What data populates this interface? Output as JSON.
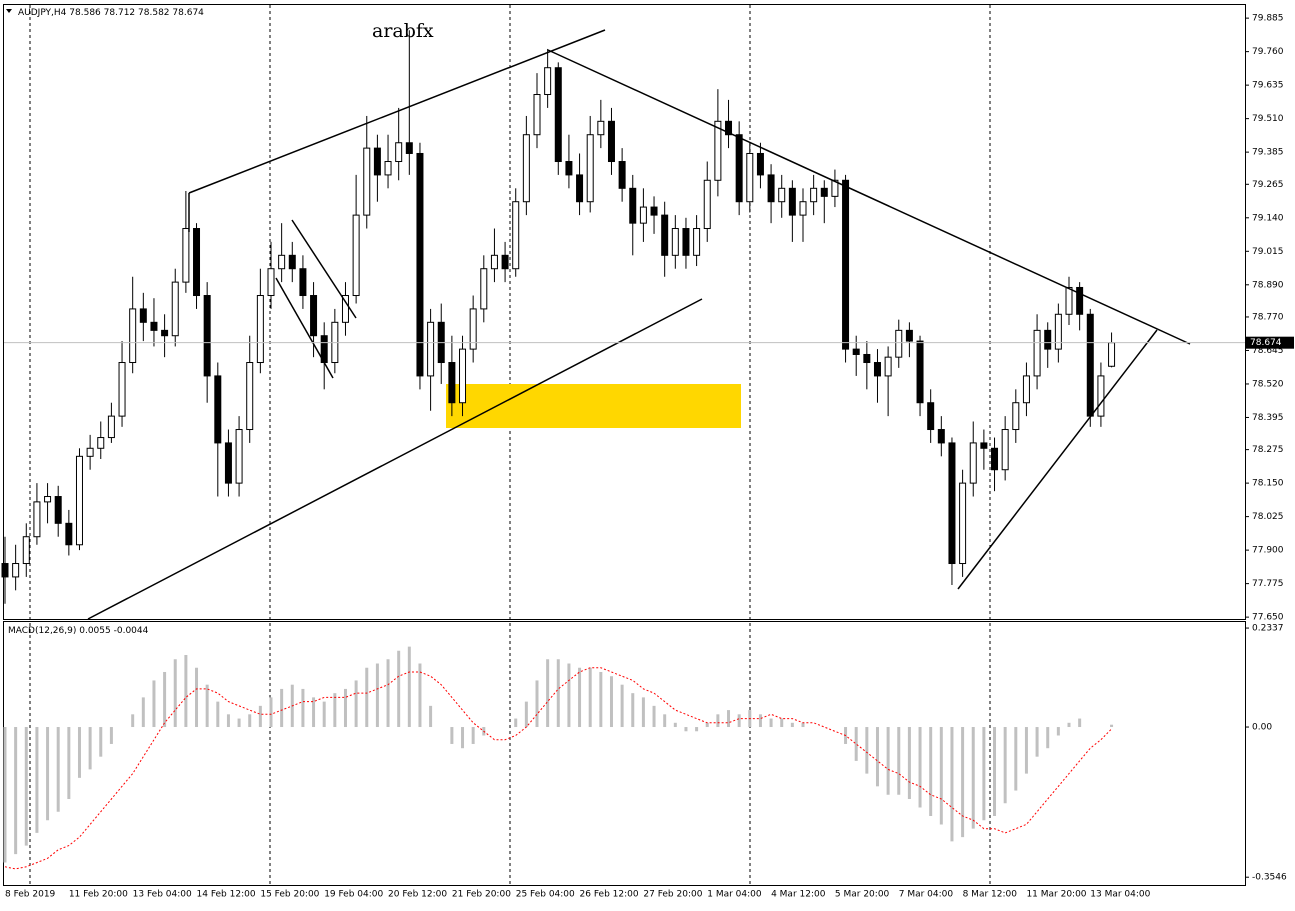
{
  "chart_data": {
    "type": "candlestick",
    "symbol": "AUDJPY,H4",
    "annotation": "arabfx",
    "categories": [
      "8 Feb 2019",
      null,
      null,
      null,
      null,
      null,
      "11 Feb 20:00",
      null,
      null,
      null,
      null,
      null,
      "13 Feb 04:00",
      null,
      null,
      null,
      null,
      null,
      "14 Feb 12:00",
      null,
      null,
      null,
      null,
      null,
      "15 Feb 20:00",
      null,
      null,
      null,
      null,
      null,
      "19 Feb 04:00",
      null,
      null,
      null,
      null,
      null,
      "20 Feb 12:00",
      null,
      null,
      null,
      null,
      null,
      "21 Feb 20:00",
      null,
      null,
      null,
      null,
      null,
      "25 Feb 04:00",
      null,
      null,
      null,
      null,
      null,
      "26 Feb 12:00",
      null,
      null,
      null,
      null,
      null,
      "27 Feb 20:00",
      null,
      null,
      null,
      null,
      null,
      "1 Mar 04:00",
      null,
      null,
      null,
      null,
      null,
      "4 Mar 12:00",
      null,
      null,
      null,
      null,
      null,
      "5 Mar 20:00",
      null,
      null,
      null,
      null,
      null,
      "7 Mar 04:00",
      null,
      null,
      null,
      null,
      null,
      "8 Mar 12:00",
      null,
      null,
      null,
      null,
      null,
      "11 Mar 20:00",
      null,
      null,
      null,
      null,
      null,
      "13 Mar 04:00",
      null,
      null
    ],
    "series": [
      {
        "name": "AUDJPY,H4",
        "color": "#000000",
        "values": [
          [
            77.85,
            77.95,
            77.7,
            77.8
          ],
          [
            77.8,
            77.92,
            77.75,
            77.85
          ],
          [
            77.85,
            78.0,
            77.8,
            77.95
          ],
          [
            77.95,
            78.15,
            77.92,
            78.08
          ],
          [
            78.08,
            78.15,
            78.0,
            78.1
          ],
          [
            78.1,
            78.14,
            77.95,
            78.0
          ],
          [
            78.0,
            78.05,
            77.88,
            77.92
          ],
          [
            77.92,
            78.28,
            77.9,
            78.25
          ],
          [
            78.25,
            78.33,
            78.2,
            78.28
          ],
          [
            78.28,
            78.38,
            78.24,
            78.32
          ],
          [
            78.32,
            78.45,
            78.3,
            78.4
          ],
          [
            78.4,
            78.68,
            78.36,
            78.6
          ],
          [
            78.6,
            78.92,
            78.56,
            78.8
          ],
          [
            78.8,
            78.86,
            78.68,
            78.75
          ],
          [
            78.75,
            78.84,
            78.66,
            78.72
          ],
          [
            78.72,
            78.78,
            78.62,
            78.7
          ],
          [
            78.7,
            78.95,
            78.66,
            78.9
          ],
          [
            78.9,
            79.24,
            78.86,
            79.1
          ],
          [
            79.1,
            79.12,
            78.8,
            78.85
          ],
          [
            78.85,
            78.9,
            78.45,
            78.55
          ],
          [
            78.55,
            78.6,
            78.1,
            78.3
          ],
          [
            78.3,
            78.35,
            78.1,
            78.15
          ],
          [
            78.15,
            78.4,
            78.1,
            78.35
          ],
          [
            78.35,
            78.7,
            78.3,
            78.6
          ],
          [
            78.6,
            78.95,
            78.56,
            78.85
          ],
          [
            78.85,
            79.05,
            78.8,
            78.95
          ],
          [
            78.95,
            79.12,
            78.9,
            79.0
          ],
          [
            79.0,
            79.05,
            78.9,
            78.95
          ],
          [
            78.95,
            79.0,
            78.8,
            78.85
          ],
          [
            78.85,
            78.9,
            78.62,
            78.7
          ],
          [
            78.7,
            78.75,
            78.5,
            78.6
          ],
          [
            78.6,
            78.8,
            78.56,
            78.75
          ],
          [
            78.75,
            78.9,
            78.7,
            78.85
          ],
          [
            78.85,
            79.3,
            78.82,
            79.15
          ],
          [
            79.15,
            79.52,
            79.1,
            79.4
          ],
          [
            79.4,
            79.45,
            79.2,
            79.3
          ],
          [
            79.3,
            79.45,
            79.25,
            79.35
          ],
          [
            79.35,
            79.55,
            79.28,
            79.42
          ],
          [
            79.42,
            79.84,
            79.3,
            79.38
          ],
          [
            79.38,
            79.42,
            78.5,
            78.55
          ],
          [
            78.55,
            78.8,
            78.42,
            78.75
          ],
          [
            78.75,
            78.82,
            78.52,
            78.6
          ],
          [
            78.6,
            78.7,
            78.4,
            78.45
          ],
          [
            78.45,
            78.7,
            78.4,
            78.65
          ],
          [
            78.65,
            78.85,
            78.6,
            78.8
          ],
          [
            78.8,
            79.0,
            78.75,
            78.95
          ],
          [
            78.95,
            79.1,
            78.9,
            79.0
          ],
          [
            79.0,
            79.05,
            78.9,
            78.95
          ],
          [
            78.95,
            79.25,
            78.92,
            79.2
          ],
          [
            79.2,
            79.52,
            79.15,
            79.45
          ],
          [
            79.45,
            79.68,
            79.4,
            79.6
          ],
          [
            79.6,
            79.77,
            79.55,
            79.7
          ],
          [
            79.7,
            79.72,
            79.3,
            79.35
          ],
          [
            79.35,
            79.45,
            79.25,
            79.3
          ],
          [
            79.3,
            79.38,
            79.15,
            79.2
          ],
          [
            79.2,
            79.52,
            79.16,
            79.45
          ],
          [
            79.45,
            79.58,
            79.4,
            79.5
          ],
          [
            79.5,
            79.55,
            79.3,
            79.35
          ],
          [
            79.35,
            79.4,
            79.2,
            79.25
          ],
          [
            79.25,
            79.3,
            79.0,
            79.12
          ],
          [
            79.12,
            79.25,
            79.05,
            79.18
          ],
          [
            79.18,
            79.22,
            79.08,
            79.15
          ],
          [
            79.15,
            79.2,
            78.92,
            79.0
          ],
          [
            79.0,
            79.15,
            78.95,
            79.1
          ],
          [
            79.1,
            79.14,
            78.95,
            79.0
          ],
          [
            79.0,
            79.15,
            78.96,
            79.1
          ],
          [
            79.1,
            79.35,
            79.05,
            79.28
          ],
          [
            79.28,
            79.62,
            79.22,
            79.5
          ],
          [
            79.5,
            79.58,
            79.4,
            79.45
          ],
          [
            79.45,
            79.5,
            79.15,
            79.2
          ],
          [
            79.2,
            79.42,
            79.16,
            79.38
          ],
          [
            79.38,
            79.42,
            79.25,
            79.3
          ],
          [
            79.3,
            79.34,
            79.12,
            79.2
          ],
          [
            79.2,
            79.3,
            79.14,
            79.25
          ],
          [
            79.25,
            79.28,
            79.05,
            79.15
          ],
          [
            79.15,
            79.25,
            79.05,
            79.2
          ],
          [
            79.2,
            79.3,
            79.15,
            79.25
          ],
          [
            79.25,
            79.28,
            79.12,
            79.22
          ],
          [
            79.22,
            79.32,
            79.18,
            79.28
          ],
          [
            79.28,
            79.3,
            78.6,
            78.65
          ],
          [
            78.65,
            78.7,
            78.55,
            78.63
          ],
          [
            78.63,
            78.68,
            78.5,
            78.6
          ],
          [
            78.6,
            78.65,
            78.45,
            78.55
          ],
          [
            78.55,
            78.66,
            78.4,
            78.62
          ],
          [
            78.62,
            78.76,
            78.58,
            78.72
          ],
          [
            78.72,
            78.75,
            78.62,
            78.68
          ],
          [
            78.68,
            78.7,
            78.4,
            78.45
          ],
          [
            78.45,
            78.5,
            78.3,
            78.35
          ],
          [
            78.35,
            78.4,
            78.25,
            78.3
          ],
          [
            78.3,
            78.32,
            77.77,
            77.85
          ],
          [
            77.85,
            78.2,
            77.8,
            78.15
          ],
          [
            78.15,
            78.38,
            78.1,
            78.3
          ],
          [
            78.3,
            78.35,
            78.2,
            78.28
          ],
          [
            78.28,
            78.32,
            78.12,
            78.2
          ],
          [
            78.2,
            78.4,
            78.16,
            78.35
          ],
          [
            78.35,
            78.5,
            78.3,
            78.45
          ],
          [
            78.45,
            78.6,
            78.4,
            78.55
          ],
          [
            78.55,
            78.78,
            78.5,
            78.72
          ],
          [
            78.72,
            78.75,
            78.58,
            78.65
          ],
          [
            78.65,
            78.82,
            78.6,
            78.78
          ],
          [
            78.78,
            78.92,
            78.74,
            78.88
          ],
          [
            78.88,
            78.9,
            78.72,
            78.78
          ],
          [
            78.78,
            78.8,
            78.36,
            78.4
          ],
          [
            78.4,
            78.6,
            78.36,
            78.55
          ],
          [
            78.586,
            78.712,
            78.582,
            78.674
          ]
        ]
      }
    ],
    "ylim": [
      77.643,
      79.934
    ],
    "yticks": [
      {
        "value": 79.885,
        "label": "79.885"
      },
      {
        "value": 79.76,
        "label": "79.760"
      },
      {
        "value": 79.635,
        "label": "79.635"
      },
      {
        "value": 79.51,
        "label": "79.510"
      },
      {
        "value": 79.385,
        "label": "79.385"
      },
      {
        "value": 79.265,
        "label": "79.265"
      },
      {
        "value": 79.14,
        "label": "79.140"
      },
      {
        "value": 79.015,
        "label": "79.015"
      },
      {
        "value": 78.89,
        "label": "78.890"
      },
      {
        "value": 78.77,
        "label": "78.770"
      },
      {
        "value": 78.645,
        "label": "78.645"
      },
      {
        "value": 78.52,
        "label": "78.520"
      },
      {
        "value": 78.395,
        "label": "78.395"
      },
      {
        "value": 78.275,
        "label": "78.275"
      },
      {
        "value": 78.15,
        "label": "78.150"
      },
      {
        "value": 78.025,
        "label": "78.025"
      },
      {
        "value": 77.9,
        "label": "77.900"
      },
      {
        "value": 77.775,
        "label": "77.775"
      },
      {
        "value": 77.65,
        "label": "77.650"
      }
    ],
    "indicator": {
      "name": "MACD(12,26,9)",
      "histogram_color": "#c0c0c0",
      "signal_color": "#ff0000",
      "values": [
        -0.32,
        -0.3,
        -0.28,
        -0.25,
        -0.22,
        -0.2,
        -0.17,
        -0.12,
        -0.1,
        -0.07,
        -0.04,
        0.0,
        0.03,
        0.07,
        0.11,
        0.13,
        0.16,
        0.17,
        0.14,
        0.1,
        0.06,
        0.03,
        0.02,
        0.03,
        0.05,
        0.07,
        0.09,
        0.1,
        0.09,
        0.07,
        0.06,
        0.08,
        0.09,
        0.11,
        0.14,
        0.15,
        0.16,
        0.18,
        0.19,
        0.15,
        0.05,
        0.0,
        -0.04,
        -0.05,
        -0.04,
        -0.02,
        0.0,
        0.0,
        0.02,
        0.06,
        0.11,
        0.16,
        0.16,
        0.15,
        0.14,
        0.14,
        0.13,
        0.12,
        0.1,
        0.08,
        0.07,
        0.05,
        0.03,
        0.01,
        -0.01,
        -0.01,
        0.01,
        0.03,
        0.04,
        0.03,
        0.04,
        0.03,
        0.02,
        0.02,
        0.01,
        0.01,
        0.0,
        0.0,
        0.0,
        -0.04,
        -0.08,
        -0.11,
        -0.14,
        -0.16,
        -0.16,
        -0.17,
        -0.19,
        -0.21,
        -0.23,
        -0.27,
        -0.26,
        -0.24,
        -0.22,
        -0.21,
        -0.18,
        -0.15,
        -0.11,
        -0.07,
        -0.05,
        -0.02,
        0.01,
        0.02,
        0.0,
        0.0,
        0.0055
      ],
      "signal": [
        -0.33,
        -0.335,
        -0.33,
        -0.32,
        -0.31,
        -0.29,
        -0.28,
        -0.26,
        -0.23,
        -0.2,
        -0.17,
        -0.14,
        -0.11,
        -0.07,
        -0.03,
        0.01,
        0.04,
        0.07,
        0.09,
        0.09,
        0.08,
        0.06,
        0.05,
        0.04,
        0.03,
        0.03,
        0.04,
        0.05,
        0.06,
        0.06,
        0.07,
        0.07,
        0.07,
        0.08,
        0.08,
        0.09,
        0.1,
        0.12,
        0.13,
        0.13,
        0.12,
        0.1,
        0.07,
        0.04,
        0.01,
        -0.01,
        -0.03,
        -0.03,
        -0.02,
        0.0,
        0.03,
        0.06,
        0.09,
        0.11,
        0.13,
        0.14,
        0.14,
        0.13,
        0.12,
        0.11,
        0.09,
        0.08,
        0.06,
        0.04,
        0.03,
        0.02,
        0.01,
        0.01,
        0.01,
        0.02,
        0.02,
        0.02,
        0.03,
        0.02,
        0.02,
        0.01,
        0.01,
        0.0,
        -0.01,
        -0.02,
        -0.04,
        -0.06,
        -0.08,
        -0.1,
        -0.11,
        -0.13,
        -0.14,
        -0.16,
        -0.17,
        -0.19,
        -0.21,
        -0.22,
        -0.24,
        -0.24,
        -0.25,
        -0.24,
        -0.23,
        -0.2,
        -0.17,
        -0.14,
        -0.11,
        -0.08,
        -0.05,
        -0.03,
        -0.0044
      ],
      "ylim": [
        -0.373,
        0.248
      ],
      "yticks": [
        0.2337,
        {
          "value": 0,
          "label": "0.00"
        },
        -0.3546
      ]
    }
  }
}
